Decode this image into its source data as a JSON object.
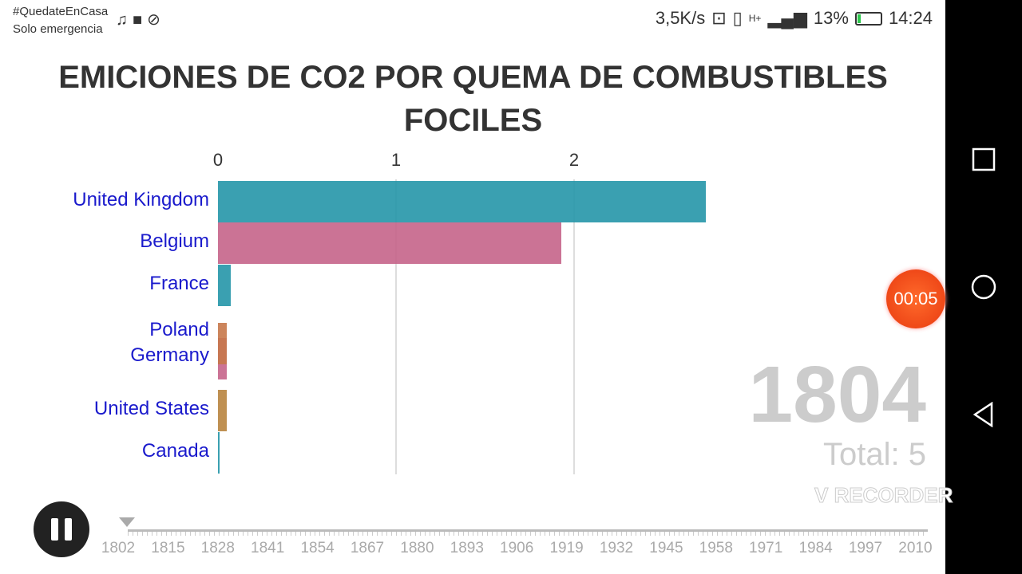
{
  "status_bar": {
    "line1": "#QuedateEnCasa",
    "line2": "Solo emergencia",
    "left_icons": [
      "music-icon",
      "video-icon",
      "no-disturb-icon"
    ],
    "speed": "3,5K/s",
    "signal": "H+",
    "battery": "13%",
    "battery_level": 0.13,
    "time": "14:24"
  },
  "chart_data": {
    "type": "bar",
    "title": "EMICIONES DE CO2 POR QUEMA DE COMBUSTIBLES FOCILES",
    "orientation": "horizontal",
    "categories": [
      "United Kingdom",
      "Belgium",
      "France",
      "Poland",
      "Germany",
      "United States",
      "Canada"
    ],
    "values": [
      2.74,
      1.93,
      0.07,
      0.05,
      0.05,
      0.05,
      0.005
    ],
    "colors": [
      "#2596a8",
      "#c5648a",
      "#2596a8",
      "#c7784a",
      "#c5648a",
      "#b8843f",
      "#2596a8"
    ],
    "xticks": [
      "0",
      "1",
      "2"
    ],
    "xlim": [
      0,
      2.9
    ],
    "grid": true,
    "year": "1804",
    "total": "Total: 5"
  },
  "player": {
    "timer": "00:05",
    "timeline_labels": [
      "1802",
      "1815",
      "1828",
      "1841",
      "1854",
      "1867",
      "1880",
      "1893",
      "1906",
      "1919",
      "1932",
      "1945",
      "1958",
      "1971",
      "1984",
      "1997",
      "2010"
    ],
    "current_year": 1804,
    "watermark": "V RECORDER"
  }
}
